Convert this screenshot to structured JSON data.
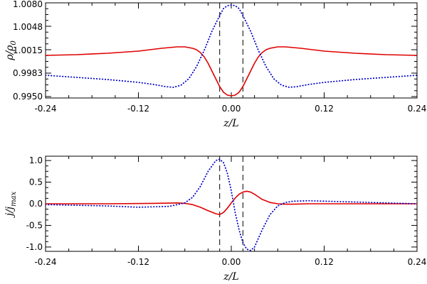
{
  "chart_data": [
    {
      "type": "line",
      "xlabel": "z/L",
      "ylabel": "ρ/ρ₀",
      "ylabel_main": "ρ/ρ",
      "ylabel_sub": "0",
      "xlim": [
        -0.24,
        0.24
      ],
      "ylim": [
        0.9948,
        1.0082
      ],
      "xticks": [
        -0.24,
        -0.12,
        0.0,
        0.12,
        0.24
      ],
      "xtick_labels": [
        "-0.24",
        "-0.12",
        "0.00",
        "0.12",
        "0.24"
      ],
      "yticks": [
        0.995,
        0.9983,
        1.0015,
        1.0048,
        1.008
      ],
      "ytick_labels": [
        "0.9950",
        "0.9983",
        "1.0015",
        "1.0048",
        "1.0080"
      ],
      "vlines": [
        -0.015,
        0.015
      ],
      "grid": false,
      "series": [
        {
          "style": "solid",
          "color": "#e00000",
          "x": [
            -0.24,
            -0.2,
            -0.16,
            -0.12,
            -0.09,
            -0.07,
            -0.06,
            -0.05,
            -0.045,
            -0.04,
            -0.035,
            -0.03,
            -0.025,
            -0.02,
            -0.015,
            -0.01,
            -0.005,
            0.0,
            0.005,
            0.01,
            0.015,
            0.02,
            0.025,
            0.03,
            0.035,
            0.04,
            0.045,
            0.05,
            0.06,
            0.07,
            0.09,
            0.12,
            0.16,
            0.2,
            0.24
          ],
          "y": [
            1.0008,
            1.0009,
            1.0011,
            1.0014,
            1.0018,
            1.002,
            1.002,
            1.0018,
            1.0016,
            1.0012,
            1.0006,
            0.9997,
            0.9986,
            0.9975,
            0.9964,
            0.9956,
            0.9952,
            0.9951,
            0.9952,
            0.9956,
            0.9964,
            0.9975,
            0.9986,
            0.9997,
            1.0006,
            1.0012,
            1.0016,
            1.0018,
            1.002,
            1.002,
            1.0018,
            1.0014,
            1.0011,
            1.0009,
            1.0008
          ]
        },
        {
          "style": "dotted",
          "color": "#0000cc",
          "x": [
            -0.24,
            -0.2,
            -0.16,
            -0.12,
            -0.1,
            -0.085,
            -0.075,
            -0.065,
            -0.055,
            -0.045,
            -0.035,
            -0.025,
            -0.015,
            -0.01,
            -0.005,
            0.0,
            0.005,
            0.01,
            0.015,
            0.025,
            0.035,
            0.045,
            0.055,
            0.065,
            0.075,
            0.085,
            0.1,
            0.12,
            0.16,
            0.2,
            0.24
          ],
          "y": [
            0.998,
            0.9977,
            0.9974,
            0.997,
            0.9967,
            0.9964,
            0.9963,
            0.9966,
            0.9975,
            0.9992,
            1.0015,
            1.0042,
            1.0064,
            1.0074,
            1.0078,
            1.0079,
            1.0078,
            1.0074,
            1.0064,
            1.0042,
            1.0015,
            0.9992,
            0.9975,
            0.9966,
            0.9963,
            0.9964,
            0.9967,
            0.997,
            0.9974,
            0.9977,
            0.998
          ]
        }
      ]
    },
    {
      "type": "line",
      "xlabel": "z/L",
      "ylabel": "j/j_max",
      "ylabel_main": "j/j",
      "ylabel_sub": "max",
      "xlim": [
        -0.24,
        0.24
      ],
      "ylim": [
        -1.1,
        1.1
      ],
      "xticks": [
        -0.24,
        -0.12,
        0.0,
        0.12,
        0.24
      ],
      "xtick_labels": [
        "-0.24",
        "-0.12",
        "0.00",
        "0.12",
        "0.24"
      ],
      "yticks": [
        -1.0,
        -0.5,
        0.0,
        0.5,
        1.0
      ],
      "ytick_labels": [
        "-1.0",
        "-0.5",
        "0.0",
        "0.5",
        "1.0"
      ],
      "vlines": [
        -0.015,
        0.015
      ],
      "grid": false,
      "series": [
        {
          "style": "solid",
          "color": "#e00000",
          "x": [
            -0.24,
            -0.16,
            -0.1,
            -0.07,
            -0.06,
            -0.05,
            -0.04,
            -0.03,
            -0.02,
            -0.015,
            -0.01,
            -0.005,
            0.0,
            0.005,
            0.01,
            0.015,
            0.02,
            0.025,
            0.03,
            0.035,
            0.04,
            0.05,
            0.06,
            0.07,
            0.08,
            0.1,
            0.12,
            0.16,
            0.24
          ],
          "y": [
            0.0,
            0.0,
            0.01,
            0.02,
            0.01,
            -0.02,
            -0.08,
            -0.16,
            -0.23,
            -0.25,
            -0.2,
            -0.1,
            0.02,
            0.13,
            0.22,
            0.27,
            0.29,
            0.27,
            0.22,
            0.16,
            0.1,
            0.03,
            0.0,
            -0.01,
            -0.01,
            0.0,
            0.0,
            0.0,
            0.0
          ]
        },
        {
          "style": "dotted",
          "color": "#0000cc",
          "x": [
            -0.24,
            -0.16,
            -0.12,
            -0.08,
            -0.06,
            -0.05,
            -0.04,
            -0.03,
            -0.02,
            -0.015,
            -0.01,
            -0.005,
            0.0,
            0.005,
            0.01,
            0.015,
            0.02,
            0.025,
            0.03,
            0.04,
            0.05,
            0.06,
            0.07,
            0.08,
            0.1,
            0.12,
            0.16,
            0.2,
            0.24
          ],
          "y": [
            -0.02,
            -0.05,
            -0.08,
            -0.06,
            0.02,
            0.15,
            0.4,
            0.75,
            1.0,
            1.03,
            0.95,
            0.7,
            0.3,
            -0.2,
            -0.6,
            -0.9,
            -1.05,
            -1.08,
            -1.0,
            -0.6,
            -0.25,
            -0.05,
            0.03,
            0.06,
            0.07,
            0.06,
            0.04,
            0.02,
            0.0
          ]
        }
      ]
    }
  ]
}
